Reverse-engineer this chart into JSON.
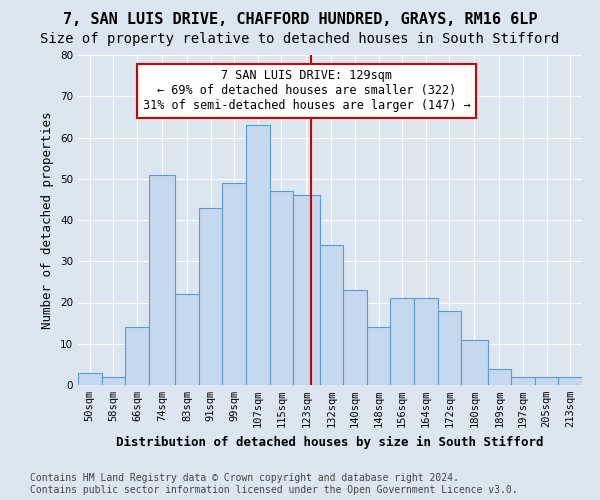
{
  "title": "7, SAN LUIS DRIVE, CHAFFORD HUNDRED, GRAYS, RM16 6LP",
  "subtitle": "Size of property relative to detached houses in South Stifford",
  "xlabel": "Distribution of detached houses by size in South Stifford",
  "ylabel": "Number of detached properties",
  "footer_line1": "Contains HM Land Registry data © Crown copyright and database right 2024.",
  "footer_line2": "Contains public sector information licensed under the Open Government Licence v3.0.",
  "categories": [
    "50sqm",
    "58sqm",
    "66sqm",
    "74sqm",
    "83sqm",
    "91sqm",
    "99sqm",
    "107sqm",
    "115sqm",
    "123sqm",
    "132sqm",
    "140sqm",
    "148sqm",
    "156sqm",
    "164sqm",
    "172sqm",
    "180sqm",
    "189sqm",
    "197sqm",
    "205sqm",
    "213sqm"
  ],
  "bar_values": [
    3,
    2,
    14,
    51,
    22,
    43,
    49,
    63,
    47,
    46,
    34,
    23,
    14,
    21,
    21,
    18,
    11,
    4,
    2,
    2,
    2
  ],
  "bar_color": "#c5d8ed",
  "bar_edge_color": "#5b9bd5",
  "bin_edges": [
    50,
    58,
    66,
    74,
    83,
    91,
    99,
    107,
    115,
    123,
    132,
    140,
    148,
    156,
    164,
    172,
    180,
    189,
    197,
    205,
    213,
    221
  ],
  "property_sqm": 129,
  "annotation_line1": "7 SAN LUIS DRIVE: 129sqm",
  "annotation_line2": "← 69% of detached houses are smaller (322)",
  "annotation_line3": "31% of semi-detached houses are larger (147) →",
  "ylim_max": 80,
  "bg_color": "#dce6f1",
  "grid_color": "#ffffff",
  "vline_color": "#cc0000",
  "ann_box_edge_color": "#cc0000",
  "ann_box_face_color": "#ffffff",
  "title_fontsize": 11,
  "subtitle_fontsize": 10,
  "xlabel_fontsize": 9,
  "ylabel_fontsize": 9,
  "tick_fontsize": 7.5,
  "annotation_fontsize": 8.5,
  "footer_fontsize": 7
}
